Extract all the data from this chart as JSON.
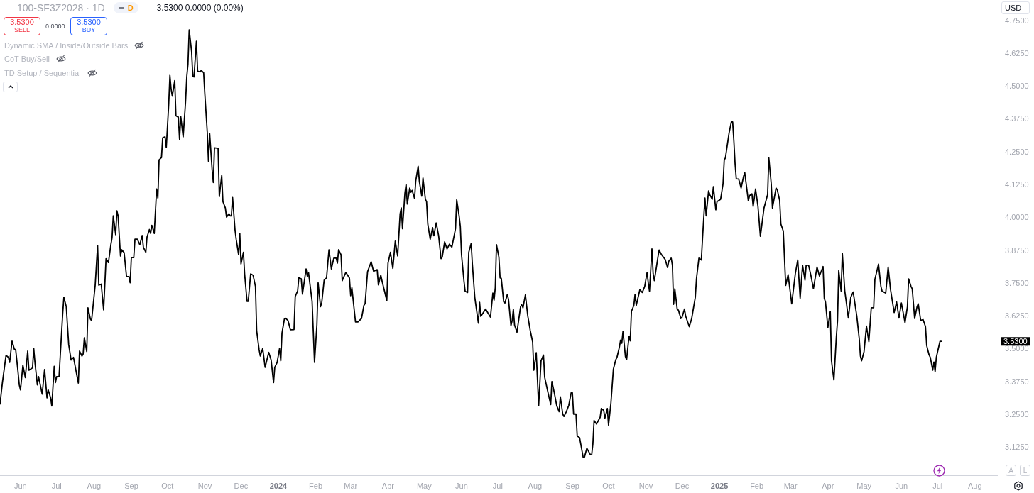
{
  "chart_data": {
    "type": "line",
    "title": "100-SF3Z2028 · 1D",
    "color": "#000000",
    "annotations": [
      "3.5300 0.0000 (0.00%)",
      "D",
      "3.5300",
      "SELL",
      "0.0000",
      "3.5300",
      "BUY",
      "Dynamic SMA / Inside/Outside Bars",
      "CoT Buy/Sell",
      "TD Setup / Sequential",
      "USD",
      "A",
      "L",
      "3.5300"
    ],
    "xlim": [
      "2023-05-15",
      "2025-08-20"
    ],
    "xticks": [
      {
        "value": "2023-06-01",
        "label": "Jun"
      },
      {
        "value": "2023-07-01",
        "label": "Jul"
      },
      {
        "value": "2023-08-01",
        "label": "Aug"
      },
      {
        "value": "2023-09-01",
        "label": "Sep"
      },
      {
        "value": "2023-10-01",
        "label": "Oct"
      },
      {
        "value": "2023-11-01",
        "label": "Nov"
      },
      {
        "value": "2023-12-01",
        "label": "Dec"
      },
      {
        "value": "2024-01-01",
        "label": "2024"
      },
      {
        "value": "2024-02-01",
        "label": "Feb"
      },
      {
        "value": "2024-03-01",
        "label": "Mar"
      },
      {
        "value": "2024-04-01",
        "label": "Apr"
      },
      {
        "value": "2024-05-01",
        "label": "May"
      },
      {
        "value": "2024-06-01",
        "label": "Jun"
      },
      {
        "value": "2024-07-01",
        "label": "Jul"
      },
      {
        "value": "2024-08-01",
        "label": "Aug"
      },
      {
        "value": "2024-09-01",
        "label": "Sep"
      },
      {
        "value": "2024-10-01",
        "label": "Oct"
      },
      {
        "value": "2024-11-01",
        "label": "Nov"
      },
      {
        "value": "2024-12-01",
        "label": "Dec"
      },
      {
        "value": "2025-01-01",
        "label": "2025"
      },
      {
        "value": "2025-02-01",
        "label": "Feb"
      },
      {
        "value": "2025-03-01",
        "label": "Mar"
      },
      {
        "value": "2025-04-01",
        "label": "Apr"
      },
      {
        "value": "2025-05-01",
        "label": "May"
      },
      {
        "value": "2025-06-01",
        "label": "Jun"
      },
      {
        "value": "2025-07-01",
        "label": "Jul"
      },
      {
        "value": "2025-08-01",
        "label": "Aug"
      }
    ],
    "ylim": [
      3.02,
      4.83
    ],
    "yticks": [
      {
        "value": 3.125,
        "label": "3.1250"
      },
      {
        "value": 3.25,
        "label": "3.2500"
      },
      {
        "value": 3.375,
        "label": "3.3750"
      },
      {
        "value": 3.5,
        "label": "3.5000"
      },
      {
        "value": 3.625,
        "label": "3.6250"
      },
      {
        "value": 3.75,
        "label": "3.7500"
      },
      {
        "value": 3.875,
        "label": "3.8750"
      },
      {
        "value": 4.0,
        "label": "4.0000"
      },
      {
        "value": 4.125,
        "label": "4.1250"
      },
      {
        "value": 4.25,
        "label": "4.2500"
      },
      {
        "value": 4.375,
        "label": "4.3750"
      },
      {
        "value": 4.5,
        "label": "4.5000"
      },
      {
        "value": 4.625,
        "label": "4.6250"
      },
      {
        "value": 4.75,
        "label": "4.7500"
      }
    ],
    "x": [
      "2023-05-15",
      "2023-05-17",
      "2023-05-20",
      "2023-05-22",
      "2023-05-23",
      "2023-05-25",
      "2023-05-27",
      "2023-05-28",
      "2023-05-30",
      "2023-05-31",
      "2023-06-01",
      "2023-06-03",
      "2023-06-05",
      "2023-06-07",
      "2023-06-08",
      "2023-06-11",
      "2023-06-12",
      "2023-06-13",
      "2023-06-15",
      "2023-06-16",
      "2023-06-19",
      "2023-06-21",
      "2023-06-23",
      "2023-06-24",
      "2023-06-26",
      "2023-06-27",
      "2023-06-29",
      "2023-06-30",
      "2023-07-01",
      "2023-07-03",
      "2023-07-06",
      "2023-07-07",
      "2023-07-09",
      "2023-07-11",
      "2023-07-13",
      "2023-07-15",
      "2023-07-19",
      "2023-07-20",
      "2023-07-22",
      "2023-07-23",
      "2023-07-24",
      "2023-07-26",
      "2023-07-27",
      "2023-07-29",
      "2023-07-30",
      "2023-08-02",
      "2023-08-04",
      "2023-08-05",
      "2023-08-07",
      "2023-08-09",
      "2023-08-11",
      "2023-08-13",
      "2023-08-15",
      "2023-08-16",
      "2023-08-17",
      "2023-08-19",
      "2023-08-20",
      "2023-08-21",
      "2023-08-23",
      "2023-08-24",
      "2023-08-26",
      "2023-08-28",
      "2023-08-30",
      "2023-08-31",
      "2023-09-01",
      "2023-09-03",
      "2023-09-04",
      "2023-09-06",
      "2023-09-08",
      "2023-09-10",
      "2023-09-11",
      "2023-09-13",
      "2023-09-14",
      "2023-09-16",
      "2023-09-17",
      "2023-09-18",
      "2023-09-20",
      "2023-09-22",
      "2023-09-23",
      "2023-09-24",
      "2023-09-26",
      "2023-09-27",
      "2023-09-29",
      "2023-09-30",
      "2023-10-02",
      "2023-10-03",
      "2023-10-04",
      "2023-10-05",
      "2023-10-07",
      "2023-10-08",
      "2023-10-10",
      "2023-10-11",
      "2023-10-12",
      "2023-10-14",
      "2023-10-16",
      "2023-10-17",
      "2023-10-18",
      "2023-10-19",
      "2023-10-21",
      "2023-10-22",
      "2023-10-23",
      "2023-10-25",
      "2023-10-26",
      "2023-10-28",
      "2023-10-29",
      "2023-10-31",
      "2023-11-01",
      "2023-11-03",
      "2023-11-04",
      "2023-11-05",
      "2023-11-07",
      "2023-11-08",
      "2023-11-09",
      "2023-11-12",
      "2023-11-13",
      "2023-11-15",
      "2023-11-16",
      "2023-11-18",
      "2023-11-19",
      "2023-11-21",
      "2023-11-22",
      "2023-11-23",
      "2023-11-24",
      "2023-11-26",
      "2023-11-27",
      "2023-11-29",
      "2023-11-30",
      "2023-12-01",
      "2023-12-03",
      "2023-12-04",
      "2023-12-06",
      "2023-12-07",
      "2023-12-09",
      "2023-12-11",
      "2023-12-13",
      "2023-12-14",
      "2023-12-16",
      "2023-12-17",
      "2023-12-19",
      "2023-12-21",
      "2023-12-24",
      "2023-12-26",
      "2023-12-28",
      "2023-12-29",
      "2023-12-31",
      "2024-01-02",
      "2024-01-03",
      "2024-01-04",
      "2024-01-06",
      "2024-01-07",
      "2024-01-09",
      "2024-01-11",
      "2024-01-14",
      "2024-01-15",
      "2024-01-17",
      "2024-01-18",
      "2024-01-20",
      "2024-01-21",
      "2024-01-24",
      "2024-01-25",
      "2024-01-26",
      "2024-01-29",
      "2024-01-31",
      "2024-02-02",
      "2024-02-03",
      "2024-02-05",
      "2024-02-06",
      "2024-02-08",
      "2024-02-10",
      "2024-02-12",
      "2024-02-14",
      "2024-02-16",
      "2024-02-18",
      "2024-02-19",
      "2024-02-20",
      "2024-02-22",
      "2024-02-23",
      "2024-02-26",
      "2024-02-29",
      "2024-03-01",
      "2024-03-02",
      "2024-03-05",
      "2024-03-07",
      "2024-03-10",
      "2024-03-12",
      "2024-03-13",
      "2024-03-15",
      "2024-03-18",
      "2024-03-20",
      "2024-03-23",
      "2024-03-24",
      "2024-03-26",
      "2024-03-27",
      "2024-03-31",
      "2024-04-01",
      "2024-04-03",
      "2024-04-05",
      "2024-04-07",
      "2024-04-09",
      "2024-04-11",
      "2024-04-12",
      "2024-04-13",
      "2024-04-15",
      "2024-04-16",
      "2024-04-17",
      "2024-04-19",
      "2024-04-20",
      "2024-04-21",
      "2024-04-23",
      "2024-04-24",
      "2024-04-26",
      "2024-04-27",
      "2024-04-29",
      "2024-04-30",
      "2024-05-02",
      "2024-05-03",
      "2024-05-04",
      "2024-05-06",
      "2024-05-08",
      "2024-05-09",
      "2024-05-11",
      "2024-05-13",
      "2024-05-15",
      "2024-05-16",
      "2024-05-18",
      "2024-05-20",
      "2024-05-22",
      "2024-05-24",
      "2024-05-27",
      "2024-05-28",
      "2024-05-30",
      "2024-05-31",
      "2024-06-01",
      "2024-06-03",
      "2024-06-04",
      "2024-06-06",
      "2024-06-07",
      "2024-06-09",
      "2024-06-10",
      "2024-06-12",
      "2024-06-15",
      "2024-06-16",
      "2024-06-17",
      "2024-06-21",
      "2024-06-25",
      "2024-06-27",
      "2024-06-28",
      "2024-06-29",
      "2024-06-30",
      "2024-07-02",
      "2024-07-03",
      "2024-07-04",
      "2024-07-06",
      "2024-07-07",
      "2024-07-09",
      "2024-07-10",
      "2024-07-12",
      "2024-07-13",
      "2024-07-14",
      "2024-07-15",
      "2024-07-17",
      "2024-07-20",
      "2024-07-21",
      "2024-07-22",
      "2024-07-24",
      "2024-07-26",
      "2024-07-28",
      "2024-07-30",
      "2024-07-31",
      "2024-08-02",
      "2024-08-04",
      "2024-08-06",
      "2024-08-08",
      "2024-08-09",
      "2024-08-12",
      "2024-08-14",
      "2024-08-15",
      "2024-08-17",
      "2024-08-19",
      "2024-08-21",
      "2024-08-22",
      "2024-08-24",
      "2024-08-25",
      "2024-08-27",
      "2024-08-29",
      "2024-08-31",
      "2024-09-01",
      "2024-09-02",
      "2024-09-04",
      "2024-09-05",
      "2024-09-07",
      "2024-09-10",
      "2024-09-11",
      "2024-09-13",
      "2024-09-16",
      "2024-09-17",
      "2024-09-18",
      "2024-09-19",
      "2024-09-21",
      "2024-09-23",
      "2024-09-24",
      "2024-09-25",
      "2024-09-27",
      "2024-09-28",
      "2024-09-30",
      "2024-10-01",
      "2024-10-03",
      "2024-10-05",
      "2024-10-07",
      "2024-10-08",
      "2024-10-10",
      "2024-10-11",
      "2024-10-12",
      "2024-10-13",
      "2024-10-15",
      "2024-10-16",
      "2024-10-18",
      "2024-10-19",
      "2024-10-20",
      "2024-10-22",
      "2024-10-23",
      "2024-10-24",
      "2024-10-27",
      "2024-10-29",
      "2024-10-31",
      "2024-11-02",
      "2024-11-03",
      "2024-11-04",
      "2024-11-06",
      "2024-11-07",
      "2024-11-08",
      "2024-11-11",
      "2024-11-12",
      "2024-11-14",
      "2024-11-17",
      "2024-11-19",
      "2024-11-20",
      "2024-11-22",
      "2024-11-23",
      "2024-11-24",
      "2024-11-25",
      "2024-11-27",
      "2024-11-28",
      "2024-11-30",
      "2024-12-01",
      "2024-12-03",
      "2024-12-04",
      "2024-12-07",
      "2024-12-09",
      "2024-12-10",
      "2024-12-12",
      "2024-12-13",
      "2024-12-15",
      "2024-12-17",
      "2024-12-18",
      "2024-12-20",
      "2024-12-21",
      "2024-12-23",
      "2024-12-24",
      "2024-12-26",
      "2024-12-27",
      "2024-12-29",
      "2024-12-30",
      "2025-01-02",
      "2025-01-04",
      "2025-01-05",
      "2025-01-06",
      "2025-01-09",
      "2025-01-11",
      "2025-01-12",
      "2025-01-13",
      "2025-01-14",
      "2025-01-15",
      "2025-01-17",
      "2025-01-19",
      "2025-01-21",
      "2025-01-22",
      "2025-01-25",
      "2025-01-26",
      "2025-01-28",
      "2025-01-29",
      "2025-01-31",
      "2025-02-02",
      "2025-02-04",
      "2025-02-07",
      "2025-02-10",
      "2025-02-11",
      "2025-02-13",
      "2025-02-14",
      "2025-02-17",
      "2025-02-18",
      "2025-02-20",
      "2025-02-21",
      "2025-02-23",
      "2025-02-25",
      "2025-02-27",
      "2025-03-02",
      "2025-03-05",
      "2025-03-07",
      "2025-03-09",
      "2025-03-11",
      "2025-03-13",
      "2025-03-14",
      "2025-03-16",
      "2025-03-18",
      "2025-03-20",
      "2025-03-23",
      "2025-03-25",
      "2025-03-28",
      "2025-03-29",
      "2025-03-30",
      "2025-04-01",
      "2025-04-03",
      "2025-04-04",
      "2025-04-06",
      "2025-04-08",
      "2025-04-09",
      "2025-04-10",
      "2025-04-12",
      "2025-04-13",
      "2025-04-15",
      "2025-04-16",
      "2025-04-18",
      "2025-04-20",
      "2025-04-22",
      "2025-04-25",
      "2025-04-27",
      "2025-04-28",
      "2025-04-29",
      "2025-05-01",
      "2025-05-03",
      "2025-05-05",
      "2025-05-07",
      "2025-05-09",
      "2025-05-10",
      "2025-05-13",
      "2025-05-15",
      "2025-05-16",
      "2025-05-19",
      "2025-05-21",
      "2025-05-23",
      "2025-05-26",
      "2025-05-28",
      "2025-05-30",
      "2025-06-01",
      "2025-06-04",
      "2025-06-06",
      "2025-06-07",
      "2025-06-09",
      "2025-06-10",
      "2025-06-12",
      "2025-06-14",
      "2025-06-15",
      "2025-06-17",
      "2025-06-19",
      "2025-06-21",
      "2025-06-22",
      "2025-06-24",
      "2025-06-25",
      "2025-06-27",
      "2025-06-28",
      "2025-06-29",
      "2025-06-30",
      "2025-07-03",
      "2025-07-04"
    ],
    "values": [
      3.291,
      3.373,
      3.477,
      3.469,
      3.45,
      3.531,
      3.499,
      3.499,
      3.412,
      3.364,
      3.345,
      3.439,
      3.392,
      3.493,
      3.42,
      3.429,
      3.503,
      3.45,
      3.364,
      3.396,
      3.329,
      3.423,
      3.315,
      3.345,
      3.315,
      3.284,
      3.435,
      3.373,
      3.396,
      3.396,
      3.633,
      3.698,
      3.662,
      3.518,
      3.459,
      3.469,
      3.371,
      3.493,
      3.474,
      3.482,
      3.544,
      3.491,
      3.658,
      3.615,
      3.609,
      3.744,
      3.895,
      3.744,
      3.748,
      3.65,
      3.845,
      3.83,
      3.898,
      3.925,
      4.008,
      3.936,
      4.027,
      4.008,
      3.855,
      3.879,
      3.868,
      3.777,
      3.777,
      3.753,
      3.849,
      3.849,
      3.919,
      3.919,
      3.898,
      3.933,
      3.888,
      3.869,
      3.927,
      3.956,
      3.941,
      3.972,
      3.941,
      4.11,
      4.076,
      4.221,
      4.23,
      4.305,
      4.309,
      4.268,
      4.432,
      4.543,
      4.491,
      4.464,
      4.523,
      4.389,
      4.384,
      4.3,
      4.386,
      4.309,
      4.443,
      4.538,
      4.586,
      4.716,
      4.634,
      4.54,
      4.537,
      4.673,
      4.559,
      4.556,
      4.562,
      4.553,
      4.471,
      4.327,
      4.216,
      4.321,
      4.186,
      4.135,
      4.267,
      4.265,
      4.081,
      4.162,
      4.062,
      4.038,
      4.003,
      4.016,
      4.008,
      4.008,
      4.078,
      3.956,
      3.919,
      3.86,
      3.941,
      3.825,
      3.869,
      3.787,
      3.682,
      3.682,
      3.787,
      3.782,
      3.739,
      3.57,
      3.499,
      3.474,
      3.503,
      3.431,
      3.488,
      3.459,
      3.373,
      3.431,
      3.45,
      3.503,
      3.456,
      3.561,
      3.615,
      3.618,
      3.609,
      3.574,
      3.575,
      3.701,
      3.722,
      3.772,
      3.768,
      3.71,
      3.806,
      3.779,
      3.793,
      3.682,
      3.45,
      3.594,
      3.753,
      3.662,
      3.677,
      3.763,
      3.772,
      3.879,
      3.806,
      3.847,
      3.847,
      3.828,
      3.879,
      3.86,
      3.761,
      3.793,
      3.771,
      3.704,
      3.734,
      3.604,
      3.604,
      3.617,
      3.667,
      3.674,
      3.795,
      3.833,
      3.797,
      3.803,
      3.745,
      3.782,
      3.761,
      3.685,
      3.828,
      3.869,
      3.808,
      3.912,
      3.855,
      4.015,
      4.038,
      3.959,
      4.094,
      4.128,
      4.053,
      4.114,
      4.098,
      4.105,
      4.074,
      4.141,
      4.197,
      4.139,
      4.083,
      4.152,
      4.071,
      4.062,
      3.977,
      3.919,
      3.963,
      3.932,
      3.981,
      3.932,
      3.845,
      3.851,
      3.909,
      3.882,
      3.9,
      3.889,
      3.959,
      4.069,
      4.008,
      3.968,
      3.86,
      3.761,
      3.721,
      3.716,
      3.869,
      3.903,
      3.824,
      3.698,
      3.599,
      3.679,
      3.625,
      3.653,
      3.622,
      3.714,
      3.687,
      3.734,
      3.898,
      3.851,
      3.772,
      3.77,
      3.68,
      3.676,
      3.709,
      3.689,
      3.59,
      3.608,
      3.652,
      3.592,
      3.565,
      3.662,
      3.669,
      3.658,
      3.707,
      3.626,
      3.572,
      3.528,
      3.42,
      3.487,
      3.285,
      3.456,
      3.478,
      3.393,
      3.33,
      3.289,
      3.377,
      3.334,
      3.285,
      3.262,
      3.319,
      3.253,
      3.244,
      3.262,
      3.286,
      3.334,
      3.334,
      3.253,
      3.253,
      3.17,
      3.163,
      3.087,
      3.089,
      3.123,
      3.098,
      3.098,
      3.139,
      3.229,
      3.215,
      3.232,
      3.24,
      3.274,
      3.267,
      3.238,
      3.274,
      3.211,
      3.296,
      3.424,
      3.46,
      3.469,
      3.508,
      3.535,
      3.523,
      3.568,
      3.472,
      3.46,
      3.55,
      3.532,
      3.644,
      3.667,
      3.709,
      3.667,
      3.727,
      3.716,
      3.739,
      3.793,
      3.752,
      3.721,
      3.882,
      3.788,
      3.761,
      3.851,
      3.878,
      3.86,
      3.842,
      3.811,
      3.835,
      3.847,
      3.82,
      3.671,
      3.73,
      3.652,
      3.649,
      3.617,
      3.622,
      3.653,
      3.626,
      3.586,
      3.617,
      3.644,
      3.698,
      3.77,
      3.847,
      3.84,
      3.923,
      4.076,
      4.008,
      4.103,
      4.089,
      4.071,
      4.119,
      4.031,
      4.062,
      4.071,
      4.13,
      4.221,
      4.229,
      4.323,
      4.368,
      4.365,
      4.292,
      4.206,
      4.149,
      4.148,
      4.114,
      4.157,
      4.173,
      4.065,
      4.085,
      4.092,
      4.044,
      4.11,
      4.044,
      3.93,
      4.038,
      4.089,
      4.229,
      4.13,
      4.038,
      4.114,
      4.107,
      4.067,
      3.977,
      3.95,
      3.743,
      3.784,
      3.673,
      3.788,
      3.84,
      3.694,
      3.82,
      3.763,
      3.82,
      3.82,
      3.779,
      3.73,
      3.813,
      3.779,
      3.815,
      3.694,
      3.68,
      3.583,
      3.644,
      3.456,
      3.383,
      3.545,
      3.608,
      3.799,
      3.721,
      3.865,
      3.723,
      3.689,
      3.619,
      3.698,
      3.718,
      3.626,
      3.541,
      3.474,
      3.456,
      3.491,
      3.588,
      3.529,
      3.658,
      3.658,
      3.766,
      3.824,
      3.739,
      3.721,
      3.714,
      3.813,
      3.727,
      3.64,
      3.68,
      3.619,
      3.676,
      3.601,
      3.662,
      3.768,
      3.739,
      3.73,
      3.617,
      3.662,
      3.673,
      3.61,
      3.613,
      3.586,
      3.514,
      3.478,
      3.469,
      3.42,
      3.451,
      3.415,
      3.469,
      3.53,
      3.53
    ]
  }
}
